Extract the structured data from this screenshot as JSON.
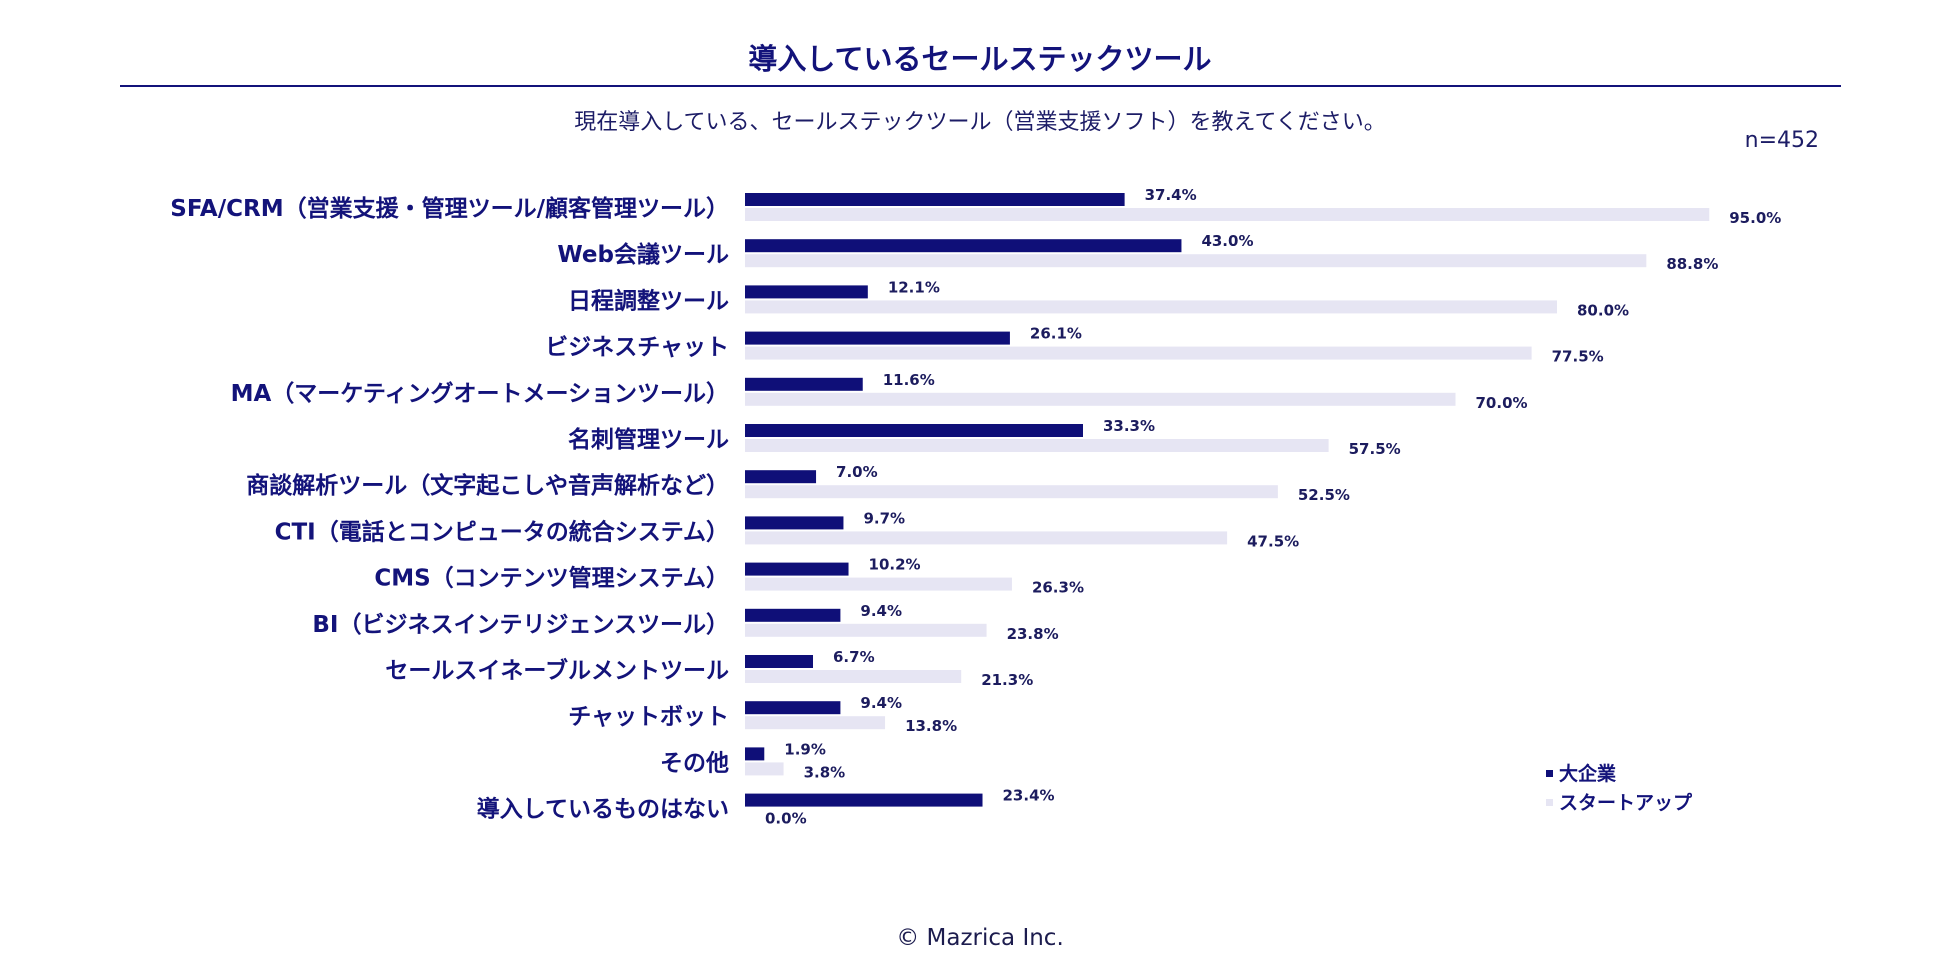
{
  "header": {
    "title": "導入しているセールステックツール",
    "subtitle": "現在導入している、セールステックツール（営業支援ソフト）を教えてください。",
    "n_label": "n=452"
  },
  "footer": {
    "copyright": "© Mazrica Inc."
  },
  "colors": {
    "large_company": "#0f0f78",
    "startup": "#e6e5f3",
    "text": "#13137a"
  },
  "chart_data": {
    "type": "bar",
    "orientation": "horizontal",
    "title": "導入しているセールステックツール",
    "xlabel": "",
    "ylabel": "",
    "xlim": [
      0,
      100
    ],
    "grid": false,
    "legend_position": "bottom-right",
    "categories": [
      "SFA/CRM（営業支援・管理ツール/顧客管理ツール）",
      "Web会議ツール",
      "日程調整ツール",
      "ビジネスチャット",
      "MA（マーケティングオートメーションツール）",
      "名刺管理ツール",
      "商談解析ツール（文字起こしや音声解析など）",
      "CTI（電話とコンピュータの統合システム）",
      "CMS（コンテンツ管理システム）",
      "BI（ビジネスインテリジェンスツール）",
      "セールスイネーブルメントツール",
      "チャットボット",
      "その他",
      "導入しているものはない"
    ],
    "series": [
      {
        "name": "大企業",
        "color": "#0f0f78",
        "values": [
          37.4,
          43.0,
          12.1,
          26.1,
          11.6,
          33.3,
          7.0,
          9.7,
          10.2,
          9.4,
          6.7,
          9.4,
          1.9,
          23.4
        ],
        "labels": [
          "37.4%",
          "43.0%",
          "12.1%",
          "26.1%",
          "11.6%",
          "33.3%",
          "7.0%",
          "9.7%",
          "10.2%",
          "9.4%",
          "6.7%",
          "9.4%",
          "1.9%",
          "23.4%"
        ]
      },
      {
        "name": "スタートアップ",
        "color": "#e6e5f3",
        "values": [
          95.0,
          88.8,
          80.0,
          77.5,
          70.0,
          57.5,
          52.5,
          47.5,
          26.3,
          23.8,
          21.3,
          13.8,
          3.8,
          0.0
        ],
        "labels": [
          "95.0%",
          "88.8%",
          "80.0%",
          "77.5%",
          "70.0%",
          "57.5%",
          "52.5%",
          "47.5%",
          "26.3%",
          "23.8%",
          "21.3%",
          "13.8%",
          "3.8%",
          "0.0%"
        ]
      }
    ]
  }
}
